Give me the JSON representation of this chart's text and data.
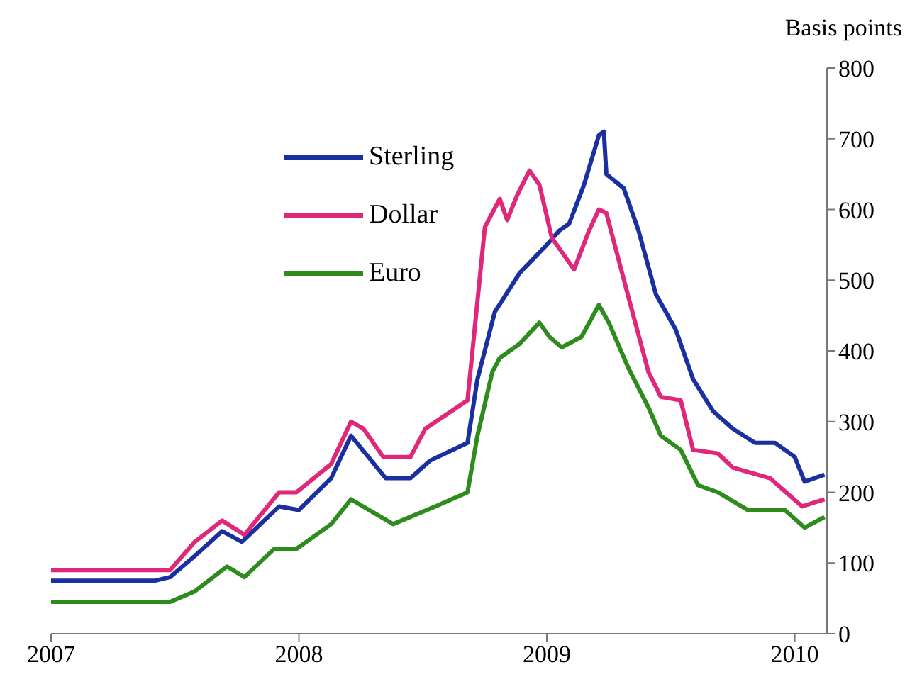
{
  "chart_data": {
    "type": "line",
    "ylabel": "Basis points",
    "xlim": [
      2007,
      2010.13
    ],
    "xticks": [
      2007,
      2008,
      2009,
      2010
    ],
    "ylim": [
      0,
      800
    ],
    "yticks": [
      0,
      100,
      200,
      300,
      400,
      500,
      600,
      700,
      800
    ],
    "grid": false,
    "legend": "top left",
    "marker": "none",
    "line_style": "solid",
    "series": [
      {
        "name": "Sterling",
        "color": "#1a2fa0",
        "x": [
          2007.0,
          2007.42,
          2007.48,
          2007.58,
          2007.69,
          2007.77,
          2007.92,
          2008.0,
          2008.13,
          2008.21,
          2008.35,
          2008.45,
          2008.53,
          2008.68,
          2008.72,
          2008.79,
          2008.89,
          2009.0,
          2009.05,
          2009.09,
          2009.15,
          2009.21,
          2009.23,
          2009.24,
          2009.31,
          2009.37,
          2009.44,
          2009.52,
          2009.59,
          2009.67,
          2009.75,
          2009.84,
          2009.92,
          2010.0,
          2010.04,
          2010.12
        ],
        "values": [
          75,
          75,
          80,
          110,
          145,
          130,
          180,
          175,
          220,
          280,
          220,
          220,
          245,
          270,
          360,
          455,
          510,
          550,
          570,
          580,
          635,
          705,
          710,
          650,
          630,
          570,
          480,
          430,
          360,
          315,
          290,
          270,
          270,
          250,
          215,
          225
        ]
      },
      {
        "name": "Dollar",
        "color": "#e0287a",
        "x": [
          2007.0,
          2007.48,
          2007.58,
          2007.69,
          2007.78,
          2007.92,
          2007.99,
          2008.13,
          2008.21,
          2008.26,
          2008.34,
          2008.45,
          2008.51,
          2008.68,
          2008.71,
          2008.75,
          2008.81,
          2008.84,
          2008.88,
          2008.93,
          2008.97,
          2009.02,
          2009.11,
          2009.17,
          2009.21,
          2009.24,
          2009.33,
          2009.41,
          2009.46,
          2009.54,
          2009.59,
          2009.69,
          2009.75,
          2009.9,
          2010.03,
          2010.12
        ],
        "values": [
          90,
          90,
          130,
          160,
          140,
          200,
          200,
          240,
          300,
          290,
          250,
          250,
          290,
          330,
          435,
          575,
          615,
          585,
          620,
          655,
          635,
          560,
          515,
          570,
          600,
          595,
          475,
          370,
          335,
          330,
          260,
          255,
          235,
          220,
          180,
          190
        ]
      },
      {
        "name": "Euro",
        "color": "#2e8b1e",
        "x": [
          2007.0,
          2007.48,
          2007.58,
          2007.71,
          2007.78,
          2007.9,
          2007.99,
          2008.13,
          2008.21,
          2008.38,
          2008.55,
          2008.68,
          2008.72,
          2008.78,
          2008.81,
          2008.89,
          2008.97,
          2009.01,
          2009.06,
          2009.14,
          2009.21,
          2009.25,
          2009.33,
          2009.41,
          2009.46,
          2009.54,
          2009.61,
          2009.69,
          2009.81,
          2009.96,
          2010.04,
          2010.12
        ],
        "values": [
          45,
          45,
          60,
          95,
          80,
          120,
          120,
          155,
          190,
          155,
          180,
          200,
          280,
          370,
          390,
          410,
          440,
          420,
          405,
          420,
          465,
          440,
          375,
          320,
          280,
          260,
          210,
          200,
          175,
          175,
          150,
          165
        ]
      }
    ]
  }
}
